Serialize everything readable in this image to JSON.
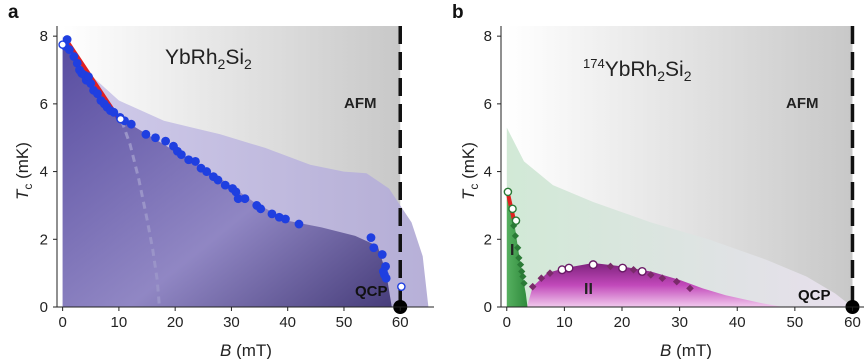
{
  "colors": {
    "blue_points": "#1f3fe0",
    "red_fit": "#e02020",
    "purple_fill": "#5a4ea0",
    "lavender_fill": "#b9b3da",
    "green_fill": "#3aa04a",
    "magenta_fill": "#a0209a",
    "gray_bg": "#cfcfcf",
    "dark_marker": "#7a2a6a"
  },
  "chart_data": [
    {
      "type": "scatter",
      "panel_label": "a",
      "title_parts": {
        "base": "YbRh",
        "sub1": "2",
        "mid": "Si",
        "sub2": "2"
      },
      "xlabel_italic": "B",
      "xlabel_unit": " (mT)",
      "ylabel_italic": "T",
      "ylabel_sub": "c",
      "ylabel_unit": " (mK)",
      "xlim": [
        -1,
        66
      ],
      "ylim": [
        0,
        8.3
      ],
      "xticks": [
        "0",
        "10",
        "20",
        "30",
        "40",
        "50",
        "60"
      ],
      "yticks": [
        "0",
        "2",
        "4",
        "6",
        "8"
      ],
      "afm_label": "AFM",
      "qcp_label": "QCP",
      "qcp_point": [
        60,
        0
      ],
      "afm_boundary_x": 60,
      "series": [
        {
          "values": [
            [
              0.8,
              7.9
            ],
            [
              0.5,
              7.7
            ],
            [
              1.2,
              7.6
            ],
            [
              2.0,
              7.4
            ],
            [
              2.6,
              7.2
            ],
            [
              3.0,
              7.0
            ],
            [
              3.4,
              6.9
            ],
            [
              3.9,
              6.85
            ],
            [
              4.2,
              6.7
            ],
            [
              4.6,
              6.8
            ],
            [
              5.0,
              6.6
            ],
            [
              5.5,
              6.4
            ],
            [
              6.2,
              6.3
            ],
            [
              6.8,
              6.1
            ],
            [
              7.4,
              6.0
            ],
            [
              7.9,
              5.9
            ],
            [
              8.5,
              5.8
            ],
            [
              9.1,
              5.75
            ],
            [
              10.2,
              5.6
            ],
            [
              11.0,
              5.5
            ],
            [
              12.2,
              5.4
            ],
            [
              14.8,
              5.1
            ],
            [
              16.5,
              5.0
            ],
            [
              18.3,
              4.9
            ],
            [
              19.7,
              4.75
            ],
            [
              20.4,
              4.6
            ],
            [
              21.1,
              4.5
            ],
            [
              22.4,
              4.35
            ],
            [
              23.6,
              4.3
            ],
            [
              24.6,
              4.1
            ],
            [
              25.6,
              4.0
            ],
            [
              26.8,
              3.85
            ],
            [
              27.6,
              3.75
            ],
            [
              28.9,
              3.6
            ],
            [
              30.2,
              3.5
            ],
            [
              30.8,
              3.4
            ],
            [
              31.2,
              3.2
            ],
            [
              32.4,
              3.2
            ],
            [
              34.5,
              3.0
            ],
            [
              35.2,
              2.9
            ],
            [
              37.2,
              2.75
            ],
            [
              38.5,
              2.65
            ],
            [
              39.6,
              2.6
            ],
            [
              42.0,
              2.45
            ],
            [
              54.8,
              2.05
            ],
            [
              55.3,
              1.75
            ],
            [
              56.8,
              1.55
            ],
            [
              57.4,
              1.2
            ],
            [
              57.0,
              1.05
            ],
            [
              57.2,
              0.95
            ],
            [
              57.5,
              0.85
            ]
          ]
        },
        {
          "values": [
            [
              0.0,
              7.75
            ],
            [
              10.3,
              5.55
            ],
            [
              60.2,
              0.6
            ]
          ]
        }
      ],
      "fit_line": [
        [
          0.6,
          7.9
        ],
        [
          9.8,
          5.6
        ]
      ],
      "dashed_curve": [
        [
          10.5,
          5.5
        ],
        [
          12,
          4.8
        ],
        [
          13.5,
          3.8
        ],
        [
          15,
          2.6
        ],
        [
          16,
          1.7
        ],
        [
          16.8,
          0.8
        ],
        [
          17.2,
          0
        ]
      ]
    },
    {
      "type": "scatter",
      "panel_label": "b",
      "title_parts": {
        "sup": "174",
        "base": "YbRh",
        "sub1": "2",
        "mid": "Si",
        "sub2": "2"
      },
      "xlabel_italic": "B",
      "xlabel_unit": " (mT)",
      "ylabel_italic": "T",
      "ylabel_sub": "c",
      "ylabel_unit": " (mK)",
      "xlim": [
        -1,
        62
      ],
      "ylim": [
        0,
        8.3
      ],
      "xticks": [
        "0",
        "10",
        "20",
        "30",
        "40",
        "50",
        "60"
      ],
      "yticks": [
        "0",
        "2",
        "4",
        "6",
        "8"
      ],
      "afm_label": "AFM",
      "qcp_label": "QCP",
      "region_I": "I",
      "region_II": "II",
      "qcp_point": [
        60,
        0
      ],
      "afm_boundary_x": 60,
      "series": [
        {
          "values": [
            [
              0.2,
              3.4
            ],
            [
              1.0,
              2.9
            ],
            [
              1.6,
              2.55
            ]
          ]
        },
        {
          "values": [
            [
              1.2,
              2.4
            ],
            [
              1.5,
              2.1
            ],
            [
              1.9,
              1.75
            ],
            [
              2.1,
              1.45
            ],
            [
              2.4,
              1.25
            ],
            [
              2.6,
              1.05
            ],
            [
              2.8,
              0.9
            ],
            [
              3.0,
              0.7
            ]
          ]
        },
        {
          "values": [
            [
              9.6,
              1.1
            ],
            [
              10.8,
              1.15
            ],
            [
              15.0,
              1.25
            ],
            [
              20.1,
              1.15
            ],
            [
              23.5,
              1.05
            ]
          ]
        },
        {
          "values": [
            [
              4.5,
              0.6
            ],
            [
              6.0,
              0.85
            ],
            [
              7.5,
              1.0
            ],
            [
              18.0,
              1.2
            ],
            [
              22.0,
              1.1
            ],
            [
              25.0,
              0.95
            ],
            [
              27.0,
              0.85
            ],
            [
              29.5,
              0.75
            ],
            [
              31.8,
              0.55
            ]
          ]
        }
      ],
      "fit_line": [
        [
          0.0,
          3.5
        ],
        [
          1.2,
          2.6
        ]
      ]
    }
  ]
}
